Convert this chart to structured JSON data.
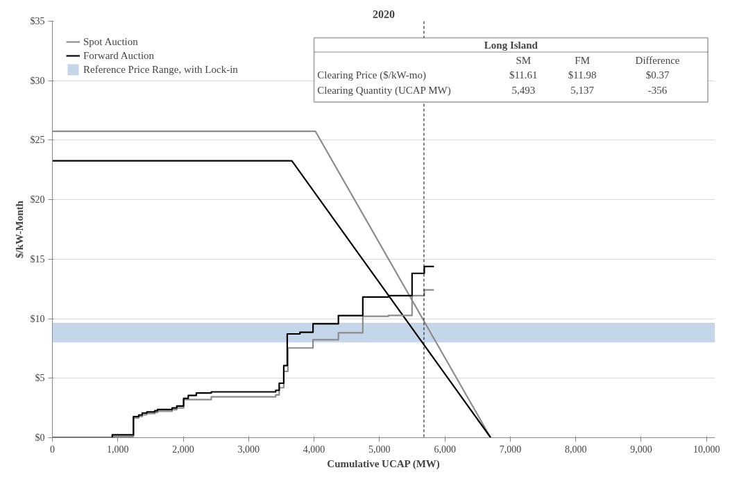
{
  "chart_data": {
    "type": "step",
    "title": "2020",
    "xlabel": "Cumulative UCAP (MW)",
    "ylabel": "$/kW-Month",
    "xlim": [
      0,
      10130
    ],
    "ylim": [
      0,
      35
    ],
    "xticks": [
      0,
      {
        "value": 1000,
        "label": "1,000"
      },
      {
        "value": 2000,
        "label": "2,000"
      },
      {
        "value": 3000,
        "label": "3,000"
      },
      {
        "value": 4000,
        "label": "4,000"
      },
      {
        "value": 5000,
        "label": "5,000"
      },
      {
        "value": 6000,
        "label": "6,000"
      },
      {
        "value": 7000,
        "label": "7,000"
      },
      {
        "value": 8000,
        "label": "8,000"
      },
      {
        "value": 9000,
        "label": "9,000"
      },
      {
        "value": 10000,
        "label": "10,000"
      }
    ],
    "yticks": [
      {
        "value": 0,
        "label": "$0"
      },
      {
        "value": 5,
        "label": "$5"
      },
      {
        "value": 10,
        "label": "$10"
      },
      {
        "value": 15,
        "label": "$15"
      },
      {
        "value": 20,
        "label": "$20"
      },
      {
        "value": 25,
        "label": "$25"
      },
      {
        "value": 30,
        "label": "$30"
      },
      {
        "value": 35,
        "label": "$35"
      }
    ],
    "grid": "y",
    "legend": "top left",
    "marker": "none",
    "line_style": "solid",
    "series": [
      {
        "name": "Spot Auction",
        "color": "#8c8c8c",
        "type": "line",
        "x": [
          0,
          4020,
          6700
        ],
        "values": [
          25.75,
          25.75,
          0
        ]
      },
      {
        "name": "Forward Auction",
        "color": "#000000",
        "type": "line",
        "x": [
          0,
          3660,
          6700
        ],
        "values": [
          23.27,
          23.27,
          0
        ]
      },
      {
        "color": "#8c8c8c",
        "x": [
          0,
          930,
          1239,
          1320,
          1373,
          1443,
          1566,
          1608,
          1830,
          1901,
          2006,
          2429,
          3414,
          3467,
          3537,
          3600,
          3984,
          4372,
          4745,
          5139,
          5498,
          5685,
          5832
        ],
        "values": [
          0,
          0.1,
          1.66,
          1.78,
          1.93,
          2.03,
          2.12,
          2.22,
          2.35,
          2.5,
          3.2,
          3.43,
          3.6,
          4.2,
          5.57,
          7.54,
          8.23,
          8.82,
          10.2,
          10.27,
          11.94,
          12.42,
          12.42
        ]
      },
      {
        "color": "#000000",
        "x": [
          0,
          915,
          1239,
          1320,
          1373,
          1443,
          1566,
          1608,
          1830,
          1901,
          2006,
          2077,
          2200,
          2429,
          3414,
          3467,
          3537,
          3590,
          3784,
          3984,
          4372,
          4745,
          5139,
          5498,
          5685,
          5832
        ],
        "values": [
          0,
          0.24,
          1.78,
          1.91,
          2.07,
          2.17,
          2.27,
          2.37,
          2.5,
          2.66,
          3.3,
          3.55,
          3.75,
          3.85,
          3.98,
          4.58,
          6.06,
          8.72,
          8.86,
          9.57,
          10.26,
          11.82,
          11.94,
          13.81,
          14.39,
          14.39
        ]
      }
    ],
    "bands": [
      {
        "axis": "y",
        "from": 8.0,
        "to": 9.65,
        "label": "Reference Price Range, with Lock-in",
        "color": "#c5d5ea"
      }
    ],
    "ref_lines": [
      {
        "axis": "x",
        "value": 5680,
        "color": "#000000",
        "line_style": "dashed"
      }
    ],
    "annotations": [
      "Long Island",
      "SM",
      "FM",
      "Difference",
      "Clearing Price ($/kW-mo)",
      "$11.61",
      "$11.98",
      "$0.37",
      "Clearing Quantity (UCAP MW)",
      "5,493",
      "5,137",
      "-356"
    ]
  }
}
